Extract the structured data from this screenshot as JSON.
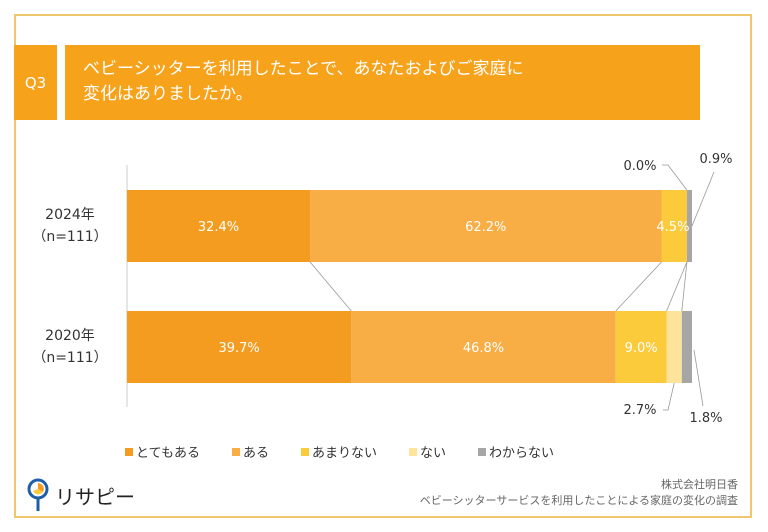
{
  "question": {
    "number": "Q3",
    "title": "ベビーシッターを利用したことで、あなたおよびご家庭に\n変化はありましたか。"
  },
  "chart_data": {
    "type": "bar",
    "orientation": "horizontal",
    "stacked": true,
    "percent": true,
    "categories": [
      {
        "year": "2024年",
        "n": "（n=111）"
      },
      {
        "year": "2020年",
        "n": "（n=111）"
      }
    ],
    "series": [
      {
        "name": "とてもある",
        "color": "#f39c1f",
        "values": [
          32.4,
          39.7
        ]
      },
      {
        "name": "ある",
        "color": "#f8ad45",
        "values": [
          62.2,
          46.8
        ]
      },
      {
        "name": "あまりない",
        "color": "#fbcb3b",
        "values": [
          4.5,
          9.0
        ]
      },
      {
        "name": "ない",
        "color": "#fde49a",
        "values": [
          0.0,
          2.7
        ]
      },
      {
        "name": "わからない",
        "color": "#a6a6a6",
        "values": [
          0.9,
          1.8
        ]
      }
    ],
    "labels": [
      [
        "32.4%",
        "62.2%",
        "4.5%",
        "0.0%",
        "0.9%"
      ],
      [
        "39.7%",
        "46.8%",
        "9.0%",
        "2.7%",
        "1.8%"
      ]
    ],
    "xlim": [
      0,
      100
    ]
  },
  "footer": {
    "logo": "リサピー",
    "company": "株式会社明日香",
    "survey": "ベビーシッターサービスを利用したことによる家庭の変化の調査"
  }
}
